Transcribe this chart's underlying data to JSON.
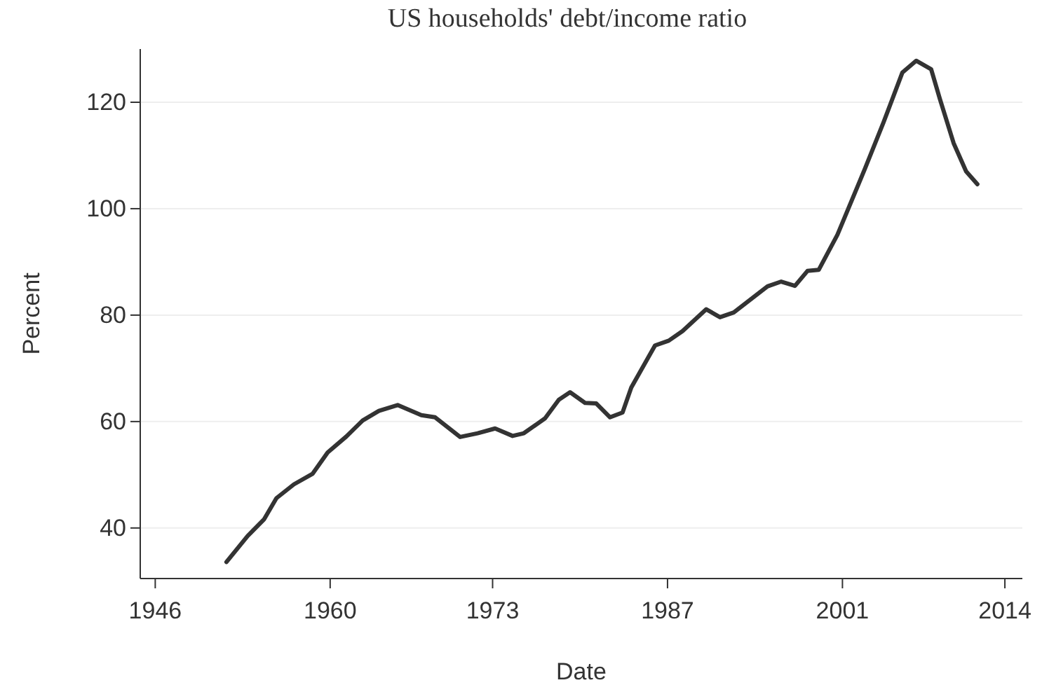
{
  "chart_data": {
    "type": "line",
    "title": "US households' debt/income ratio",
    "xlabel": "Date",
    "ylabel": "Percent",
    "x": [
      1951.7,
      1953.4,
      1954.7,
      1955.7,
      1957.1,
      1958.6,
      1959.8,
      1961.3,
      1962.6,
      1963.9,
      1965.4,
      1967.3,
      1968.4,
      1970.4,
      1971.8,
      1973.2,
      1974.6,
      1975.5,
      1977.2,
      1978.3,
      1979.2,
      1980.4,
      1981.3,
      1982.4,
      1983.4,
      1984.1,
      1986,
      1987.1,
      1988.2,
      1990.1,
      1991.2,
      1992.3,
      1995,
      1996.1,
      1997.2,
      1998.2,
      1999.1,
      2000.6,
      2002.8,
      2004.3,
      2005.8,
      2006.9,
      2008.1,
      2008.8,
      2009.9,
      2010.9,
      2011.8
    ],
    "series": [
      {
        "color": "#333333",
        "values": [
          33.6,
          38.5,
          41.6,
          45.6,
          48.2,
          50.2,
          54.2,
          57.2,
          60.2,
          62,
          63.1,
          61.2,
          60.8,
          57.1,
          57.8,
          58.7,
          57.3,
          57.8,
          60.6,
          64.1,
          65.5,
          63.5,
          63.4,
          60.8,
          61.7,
          66.4,
          74.3,
          75.2,
          77,
          81.1,
          79.6,
          80.5,
          85.4,
          86.3,
          85.5,
          88.3,
          88.5,
          95.1,
          107.5,
          116.3,
          125.6,
          127.8,
          126.2,
          120.6,
          112.3,
          107,
          104.6
        ]
      }
    ],
    "xlim": [
      1944.8,
      2015.4
    ],
    "xticks": [
      1946,
      1960,
      1973,
      1987,
      2001,
      2014
    ],
    "ylim": [
      30.5,
      130
    ],
    "yticks": [
      40,
      60,
      80,
      100,
      120
    ],
    "grid": "y",
    "marker": "none",
    "line_style": "solid"
  }
}
